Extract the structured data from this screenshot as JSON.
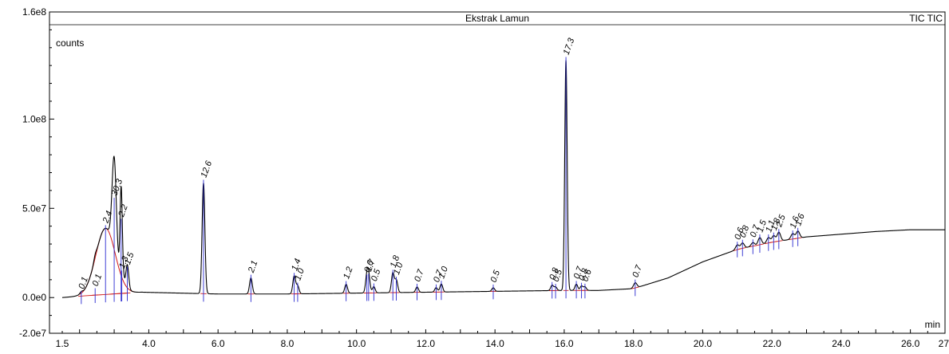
{
  "chart_data": {
    "type": "line",
    "title": "Ekstrak Lamun",
    "header_right": "TIC TIC",
    "ylabel": "counts",
    "xlabel": "min",
    "xlim": [
      1.5,
      27.0
    ],
    "ylim": [
      -20000000,
      160000000
    ],
    "x_ticks": [
      {
        "v": 1.5,
        "label": "1.5"
      },
      {
        "v": 4.0,
        "label": "4.0"
      },
      {
        "v": 6.0,
        "label": "6.0"
      },
      {
        "v": 8.0,
        "label": "8.0"
      },
      {
        "v": 10.0,
        "label": "10.0"
      },
      {
        "v": 12.0,
        "label": "12.0"
      },
      {
        "v": 14.0,
        "label": "14.0"
      },
      {
        "v": 16.0,
        "label": "16.0"
      },
      {
        "v": 18.0,
        "label": "18.0"
      },
      {
        "v": 20.0,
        "label": "20.0"
      },
      {
        "v": 22.0,
        "label": "22.0"
      },
      {
        "v": 24.0,
        "label": "24.0"
      },
      {
        "v": 26.0,
        "label": "26.0"
      },
      {
        "v": 27.0,
        "label": "27."
      }
    ],
    "y_ticks": [
      {
        "v": 160000000,
        "label": "1.6e8"
      },
      {
        "v": 100000000,
        "label": "1.0e8"
      },
      {
        "v": 50000000,
        "label": "5.0e7"
      },
      {
        "v": 0,
        "label": "0.0e0"
      },
      {
        "v": -20000000,
        "label": "-2.0e7"
      }
    ],
    "baseline": [
      [
        1.5,
        0
      ],
      [
        2.5,
        1500000
      ],
      [
        3.8,
        3000000
      ],
      [
        6.0,
        2000000
      ],
      [
        8.0,
        2000000
      ],
      [
        10.0,
        2500000
      ],
      [
        12.0,
        3000000
      ],
      [
        14.0,
        3500000
      ],
      [
        16.0,
        4000000
      ],
      [
        17.0,
        4000000
      ],
      [
        18.0,
        5000000
      ],
      [
        19.0,
        11000000
      ],
      [
        20.0,
        20000000
      ],
      [
        21.0,
        27000000
      ],
      [
        22.0,
        31000000
      ],
      [
        23.0,
        34000000
      ],
      [
        24.0,
        35500000
      ],
      [
        25.0,
        37000000
      ],
      [
        26.0,
        38000000
      ],
      [
        27.0,
        38000000
      ]
    ],
    "peaks": [
      {
        "x": 2.05,
        "h": 1000000,
        "w": 0.04,
        "label": "0.1"
      },
      {
        "x": 2.45,
        "h": 2000000,
        "w": 0.04,
        "label": "0.1"
      },
      {
        "x": 2.75,
        "h": 37000000,
        "w": 0.28,
        "label": "2.4"
      },
      {
        "x": 3.0,
        "h": 52000000,
        "w": 0.06,
        "label": "30.3"
      },
      {
        "x": 3.2,
        "h": 40000000,
        "w": 0.03,
        "label": "2.2"
      },
      {
        "x": 3.22,
        "h": 11000000,
        "w": 0.04,
        "label": "1.3"
      },
      {
        "x": 3.38,
        "h": 13000000,
        "w": 0.04,
        "label": "1.5"
      },
      {
        "x": 5.58,
        "h": 62000000,
        "w": 0.04,
        "label": "12.6"
      },
      {
        "x": 6.95,
        "h": 9000000,
        "w": 0.04,
        "label": "2.1"
      },
      {
        "x": 8.2,
        "h": 10000000,
        "w": 0.04,
        "label": "1.4"
      },
      {
        "x": 8.3,
        "h": 4500000,
        "w": 0.04,
        "label": "1.0"
      },
      {
        "x": 9.7,
        "h": 5000000,
        "w": 0.04,
        "label": "1.2"
      },
      {
        "x": 10.3,
        "h": 8500000,
        "w": 0.04,
        "label": "0.6"
      },
      {
        "x": 10.35,
        "h": 9000000,
        "w": 0.04,
        "label": "1.7"
      },
      {
        "x": 10.5,
        "h": 3500000,
        "w": 0.04,
        "label": "0.5"
      },
      {
        "x": 11.05,
        "h": 11000000,
        "w": 0.04,
        "label": "1.8"
      },
      {
        "x": 11.15,
        "h": 7000000,
        "w": 0.04,
        "label": "1.0"
      },
      {
        "x": 11.75,
        "h": 3000000,
        "w": 0.04,
        "label": "0.7"
      },
      {
        "x": 12.3,
        "h": 2500000,
        "w": 0.04,
        "label": "0.7"
      },
      {
        "x": 12.45,
        "h": 4500000,
        "w": 0.04,
        "label": "1.0"
      },
      {
        "x": 13.95,
        "h": 2000000,
        "w": 0.04,
        "label": "0.5"
      },
      {
        "x": 15.65,
        "h": 3000000,
        "w": 0.04,
        "label": "0.8"
      },
      {
        "x": 15.75,
        "h": 2000000,
        "w": 0.04,
        "label": "0.5"
      },
      {
        "x": 16.05,
        "h": 129000000,
        "w": 0.035,
        "label": "17.3"
      },
      {
        "x": 16.35,
        "h": 3500000,
        "w": 0.04,
        "label": "0.7"
      },
      {
        "x": 16.5,
        "h": 2500000,
        "w": 0.04,
        "label": "0.8"
      },
      {
        "x": 16.6,
        "h": 2000000,
        "w": 0.04,
        "label": "0.6"
      },
      {
        "x": 18.05,
        "h": 3000000,
        "w": 0.05,
        "label": "0.7"
      },
      {
        "x": 21.0,
        "h": 2500000,
        "w": 0.05,
        "label": "0.6"
      },
      {
        "x": 21.15,
        "h": 3000000,
        "w": 0.05,
        "label": "0.8"
      },
      {
        "x": 21.45,
        "h": 2000000,
        "w": 0.05,
        "label": "0.7"
      },
      {
        "x": 21.65,
        "h": 4000000,
        "w": 0.05,
        "label": "1.5"
      },
      {
        "x": 21.9,
        "h": 3000000,
        "w": 0.05,
        "label": "1.1"
      },
      {
        "x": 22.05,
        "h": 3500000,
        "w": 0.05,
        "label": "1.8"
      },
      {
        "x": 22.2,
        "h": 5000000,
        "w": 0.05,
        "label": "2.5"
      },
      {
        "x": 22.6,
        "h": 3000000,
        "w": 0.05,
        "label": "1.6"
      },
      {
        "x": 22.75,
        "h": 4000000,
        "w": 0.05,
        "label": "1.6"
      }
    ],
    "colors": {
      "trace": "#000000",
      "label": "#000000",
      "marker": "#2a2ad0",
      "fit": "#d01818",
      "axis": "#000000"
    }
  }
}
